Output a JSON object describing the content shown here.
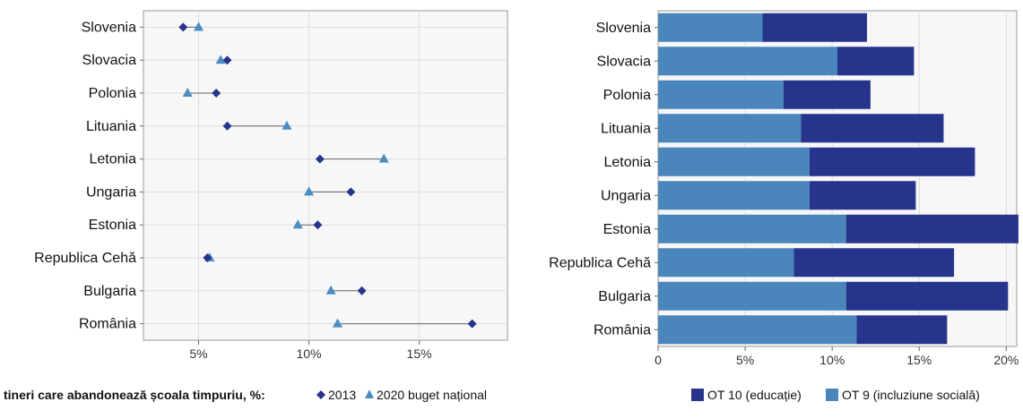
{
  "chart_data": [
    {
      "type": "scatter",
      "categories": [
        "Slovenia",
        "Slovacia",
        "Polonia",
        "Lituania",
        "Letonia",
        "Ungaria",
        "Estonia",
        "Republica Cehă",
        "Bulgaria",
        "România"
      ],
      "series": [
        {
          "name": "2013",
          "values": [
            4.3,
            6.3,
            5.8,
            6.3,
            10.5,
            11.9,
            10.4,
            5.4,
            12.4,
            17.4
          ]
        },
        {
          "name": "2020 buget național",
          "values": [
            5.0,
            6.0,
            4.5,
            9.0,
            13.4,
            10.0,
            9.5,
            5.5,
            11.0,
            11.3
          ]
        }
      ],
      "xlim": [
        2.5,
        19.0
      ],
      "x_ticks": [
        5,
        10,
        15
      ],
      "x_tick_labels": [
        "5%",
        "10%",
        "15%"
      ],
      "legend_title": "tineri care abandonează școala timpuriu, %:",
      "legend_position": "bottom",
      "grid": true,
      "colors": {
        "2013": "#27348b",
        "2020 buget național": "#4a8cc4",
        "connector": "#666666"
      }
    },
    {
      "type": "bar",
      "orientation": "horizontal",
      "stacked": true,
      "categories": [
        "Slovenia",
        "Slovacia",
        "Polonia",
        "Lituania",
        "Letonia",
        "Ungaria",
        "Estonia",
        "Republica Cehă",
        "Bulgaria",
        "România"
      ],
      "series": [
        {
          "name": "OT 9 (incluziune socială)",
          "values": [
            6.0,
            10.3,
            7.2,
            8.2,
            8.7,
            8.7,
            10.8,
            7.8,
            10.8,
            11.4
          ]
        },
        {
          "name": "OT 10 (educație)",
          "values": [
            6.0,
            4.4,
            5.0,
            8.2,
            9.5,
            6.1,
            9.9,
            9.2,
            9.3,
            5.2
          ]
        }
      ],
      "xlim": [
        0,
        20.6
      ],
      "x_ticks": [
        0,
        5,
        10,
        15,
        20
      ],
      "x_tick_labels": [
        "0",
        "5%",
        "10%",
        "15%",
        "20%"
      ],
      "legend_order": [
        "OT 10 (educație)",
        "OT 9 (incluziune socială)"
      ],
      "legend_position": "bottom",
      "grid": true,
      "colors": {
        "OT 10 (educație)": "#27348b",
        "OT 9 (incluziune socială)": "#4a86bc"
      }
    }
  ]
}
